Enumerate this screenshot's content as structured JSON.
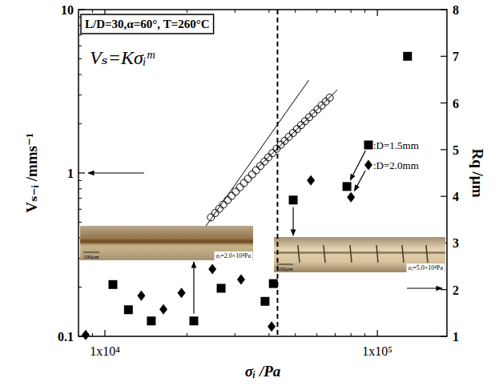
{
  "chart_data": {
    "type": "scatter",
    "log": true,
    "grid": false,
    "legend": "right",
    "x_label": "σᵢ /Pa",
    "y_label": "Vₛ₋ᵢ /mms⁻¹",
    "y2_label": "Rq /μm",
    "annotations": [
      "L/D=30,α=60°, T=260°C",
      "Vₛ=Kσᵢᵐ",
      "100μm",
      "σᵢ=2.0×10⁴Pa",
      "100μm",
      "σᵢ=5.0×10⁴Pa"
    ],
    "threshold_x": 43000,
    "xlim": [
      8000,
      180000
    ],
    "xticks": [
      {
        "value": 10000,
        "label": "1x10⁴"
      },
      {
        "value": 100000,
        "label": "1x10⁵"
      }
    ],
    "ylim": [
      0.1,
      10
    ],
    "yticks": [
      0.1,
      1,
      10
    ],
    "y2lim": [
      1,
      8
    ],
    "y2ticks": [
      1,
      2,
      3,
      4,
      5,
      6,
      7,
      8
    ],
    "series": [
      {
        "type": "scatter",
        "marker": "circle-open",
        "color": "#000000",
        "x": [
          24500,
          25400,
          26300,
          27200,
          28200,
          29200,
          30200,
          31300,
          32400,
          33500,
          34700,
          35900,
          37200,
          38500,
          39800,
          41200,
          42700,
          44200,
          45700,
          47300,
          49000,
          50700,
          52500,
          54300,
          56200,
          58200,
          60300,
          62400,
          64600,
          66800
        ],
        "values": [
          0.535,
          0.569,
          0.604,
          0.641,
          0.682,
          0.724,
          0.769,
          0.817,
          0.868,
          0.922,
          0.979,
          1.04,
          1.105,
          1.175,
          1.247,
          1.324,
          1.408,
          1.489,
          1.574,
          1.663,
          1.758,
          1.858,
          1.963,
          2.075,
          2.193,
          2.317,
          2.449,
          2.588,
          2.735,
          2.89
        ]
      },
      {
        "type": "line",
        "line_style": "solid",
        "color": "#000000",
        "x": [
          23500,
          56000
        ],
        "values": [
          0.474,
          3.7
        ]
      },
      {
        "type": "line",
        "line_style": "solid",
        "color": "#000000",
        "x": [
          36200,
          71300
        ],
        "values": [
          1.07,
          3.23
        ]
      },
      {
        "name": ":D=1.5mm",
        "type": "scatter",
        "marker": "square",
        "color": "#000000",
        "axis": "y2",
        "x": [
          10700,
          12200,
          14800,
          21200,
          26700,
          38700,
          41500,
          49100,
          77300,
          129000
        ],
        "values": [
          2.11,
          1.57,
          1.33,
          1.33,
          2.03,
          1.75,
          2.13,
          3.92,
          4.21,
          7.0
        ]
      },
      {
        "name": ":D=2.0mm",
        "type": "scatter",
        "marker": "diamond",
        "color": "#000000",
        "axis": "y2",
        "x": [
          8500,
          13600,
          16400,
          19100,
          24800,
          31600,
          40900,
          57000,
          80000
        ],
        "values": [
          1.03,
          1.87,
          1.58,
          1.93,
          2.44,
          2.22,
          1.21,
          4.34,
          3.98
        ]
      }
    ]
  }
}
